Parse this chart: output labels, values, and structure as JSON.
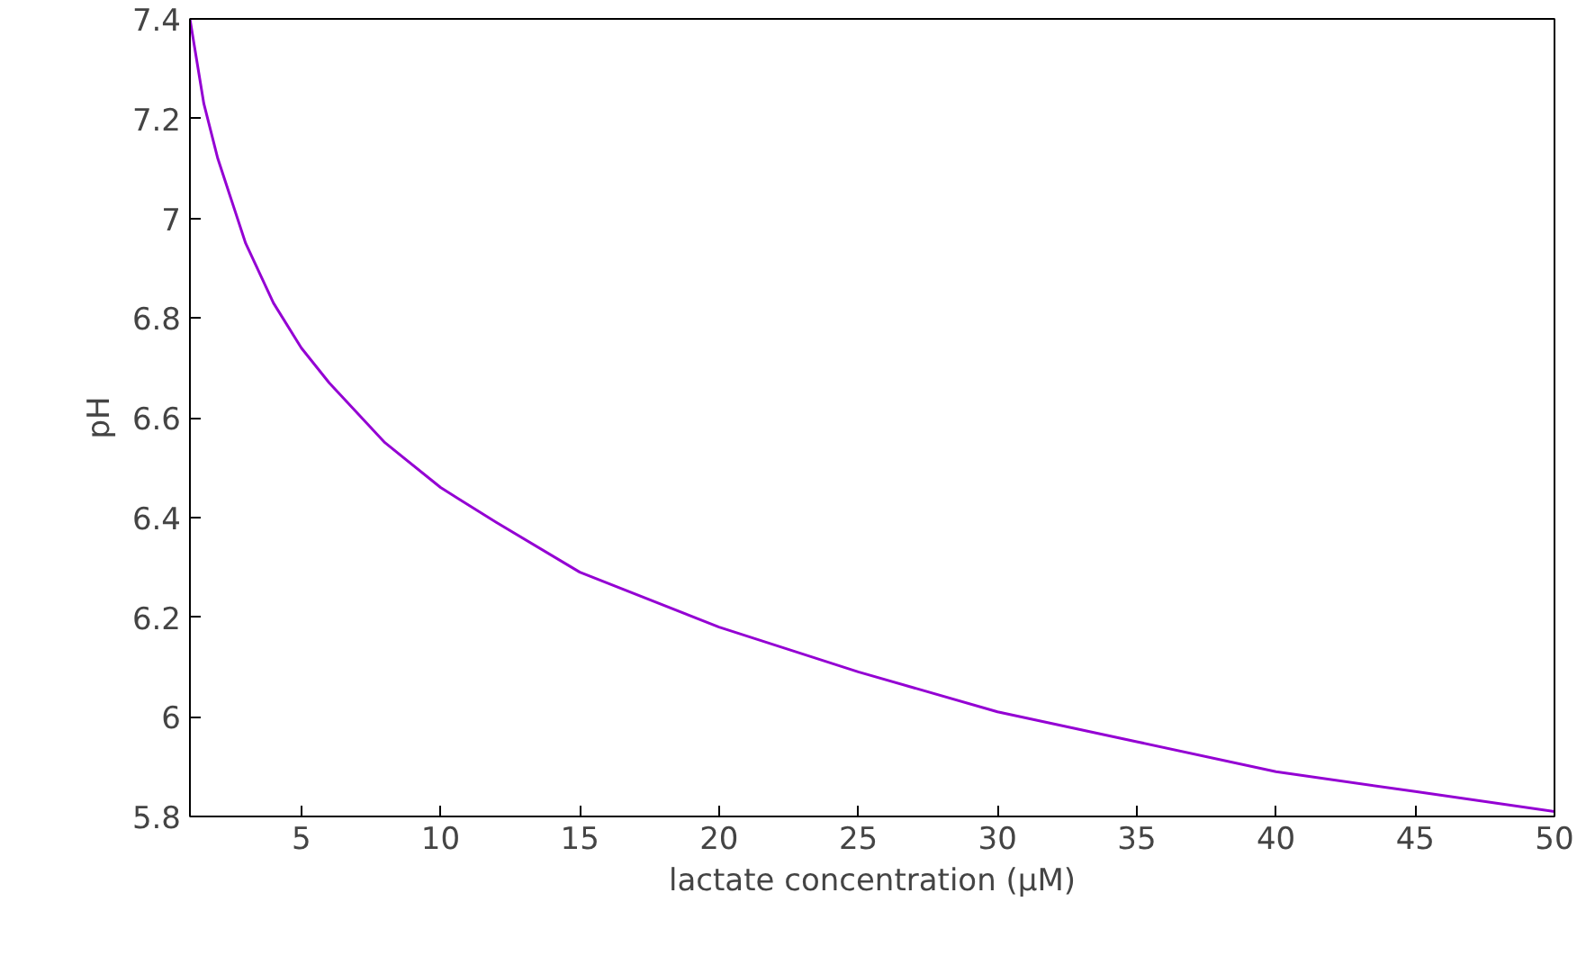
{
  "chart_data": {
    "type": "line",
    "xlabel": "lactate concentration (µM)",
    "ylabel": "pH",
    "x": [
      1,
      1.5,
      2,
      3,
      4,
      5,
      6,
      8,
      10,
      12,
      15,
      20,
      25,
      30,
      35,
      40,
      45,
      50
    ],
    "series": [
      {
        "color": "#9400d3",
        "values": [
          7.4,
          7.23,
          7.12,
          6.95,
          6.83,
          6.74,
          6.67,
          6.55,
          6.46,
          6.39,
          6.29,
          6.18,
          6.09,
          6.01,
          5.95,
          5.89,
          5.85,
          5.81
        ]
      }
    ],
    "xlim": [
      1,
      50
    ],
    "xticks": [
      5,
      10,
      15,
      20,
      25,
      30,
      35,
      40,
      45,
      50
    ],
    "ylim": [
      5.8,
      7.4
    ],
    "yticks": [
      {
        "value": 5.8,
        "label": "5.8"
      },
      6,
      {
        "value": 6.2,
        "label": "6.2"
      },
      {
        "value": 6.4,
        "label": "6.4"
      },
      {
        "value": 6.6,
        "label": "6.6"
      },
      {
        "value": 6.8,
        "label": "6.8"
      },
      7,
      {
        "value": 7.2,
        "label": "7.2"
      },
      {
        "value": 7.4,
        "label": "7.4"
      }
    ],
    "line_style": "solid"
  }
}
